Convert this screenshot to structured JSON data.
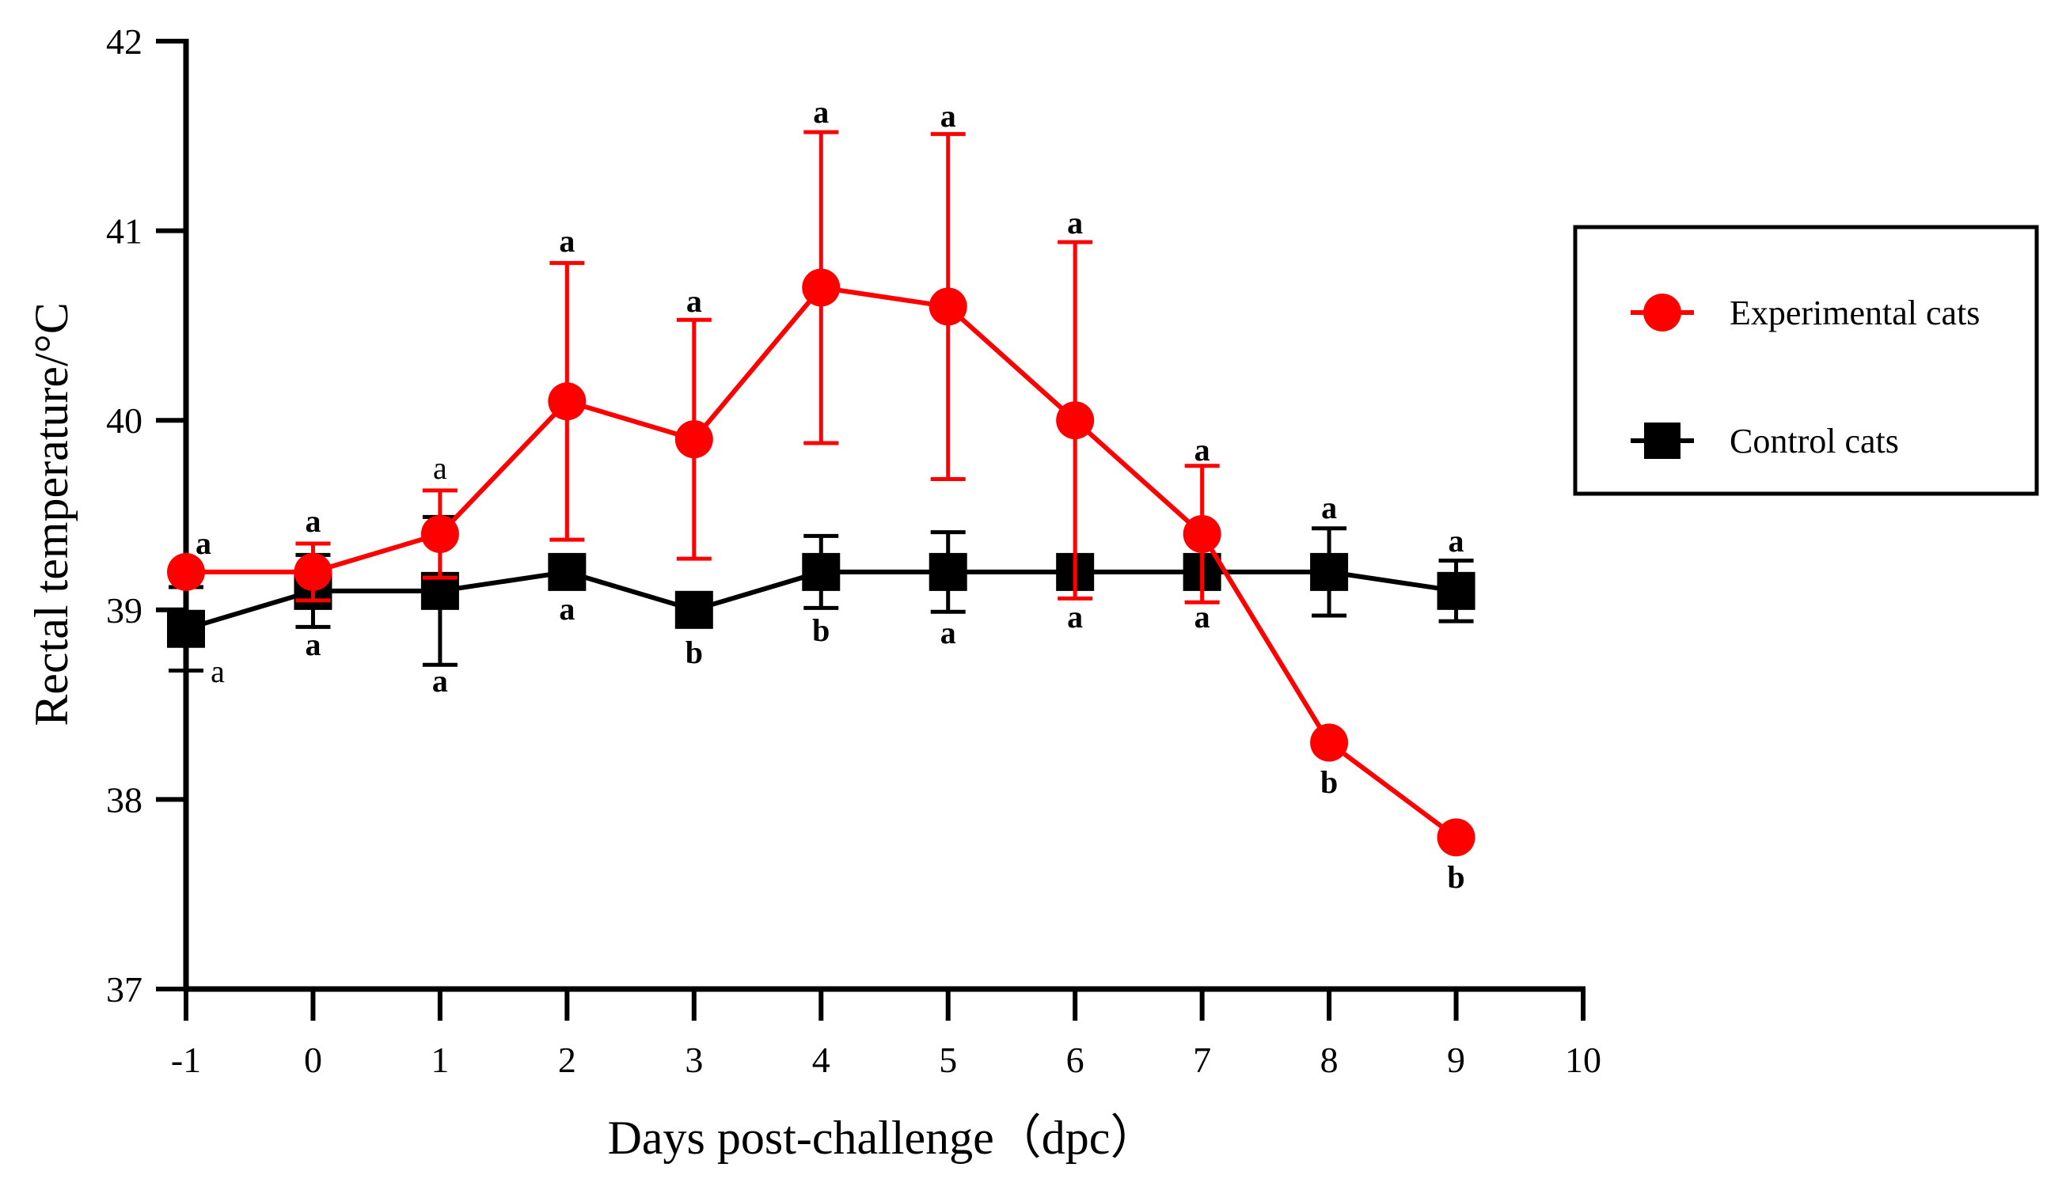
{
  "chart_data": {
    "type": "line",
    "title": "",
    "xlabel": "Days post-challenge（dpc）",
    "ylabel": "Rectal temperature/°C",
    "xlim": [
      -1,
      10
    ],
    "ylim": [
      37,
      42
    ],
    "x_ticks": [
      "-1",
      "0",
      "1",
      "2",
      "3",
      "4",
      "5",
      "6",
      "7",
      "8",
      "9",
      "10"
    ],
    "y_ticks": [
      "37",
      "38",
      "39",
      "40",
      "41",
      "42"
    ],
    "legend_position": "right",
    "series": [
      {
        "name": "Experimental cats",
        "color": "#ff0000",
        "marker": "circle",
        "x": [
          -1,
          0,
          1,
          2,
          3,
          4,
          5,
          6,
          7,
          8,
          9
        ],
        "values": [
          39.2,
          39.2,
          39.4,
          40.1,
          39.9,
          40.7,
          40.6,
          40.0,
          39.4,
          38.3,
          37.8
        ],
        "error": [
          0,
          0.15,
          0.23,
          0.73,
          0.63,
          0.82,
          0.91,
          0.94,
          0.36,
          null,
          null
        ],
        "labels": [
          "a",
          "a",
          "a",
          "a",
          "a",
          "a",
          "a",
          "a",
          "a",
          "b",
          "b"
        ]
      },
      {
        "name": "Control cats",
        "color": "#000000",
        "marker": "square",
        "x": [
          -1,
          0,
          1,
          2,
          3,
          4,
          5,
          6,
          7,
          8,
          9
        ],
        "values": [
          38.9,
          39.1,
          39.1,
          39.2,
          39.0,
          39.2,
          39.2,
          39.2,
          39.2,
          39.2,
          39.1
        ],
        "error": [
          0.22,
          0.19,
          0.39,
          0.05,
          0.05,
          0.19,
          0.21,
          0.05,
          0.05,
          0.23,
          0.16
        ],
        "labels": [
          "a",
          "a",
          "a",
          "a",
          "b",
          "b",
          "a",
          "a",
          "a",
          "a",
          "a"
        ]
      }
    ]
  }
}
